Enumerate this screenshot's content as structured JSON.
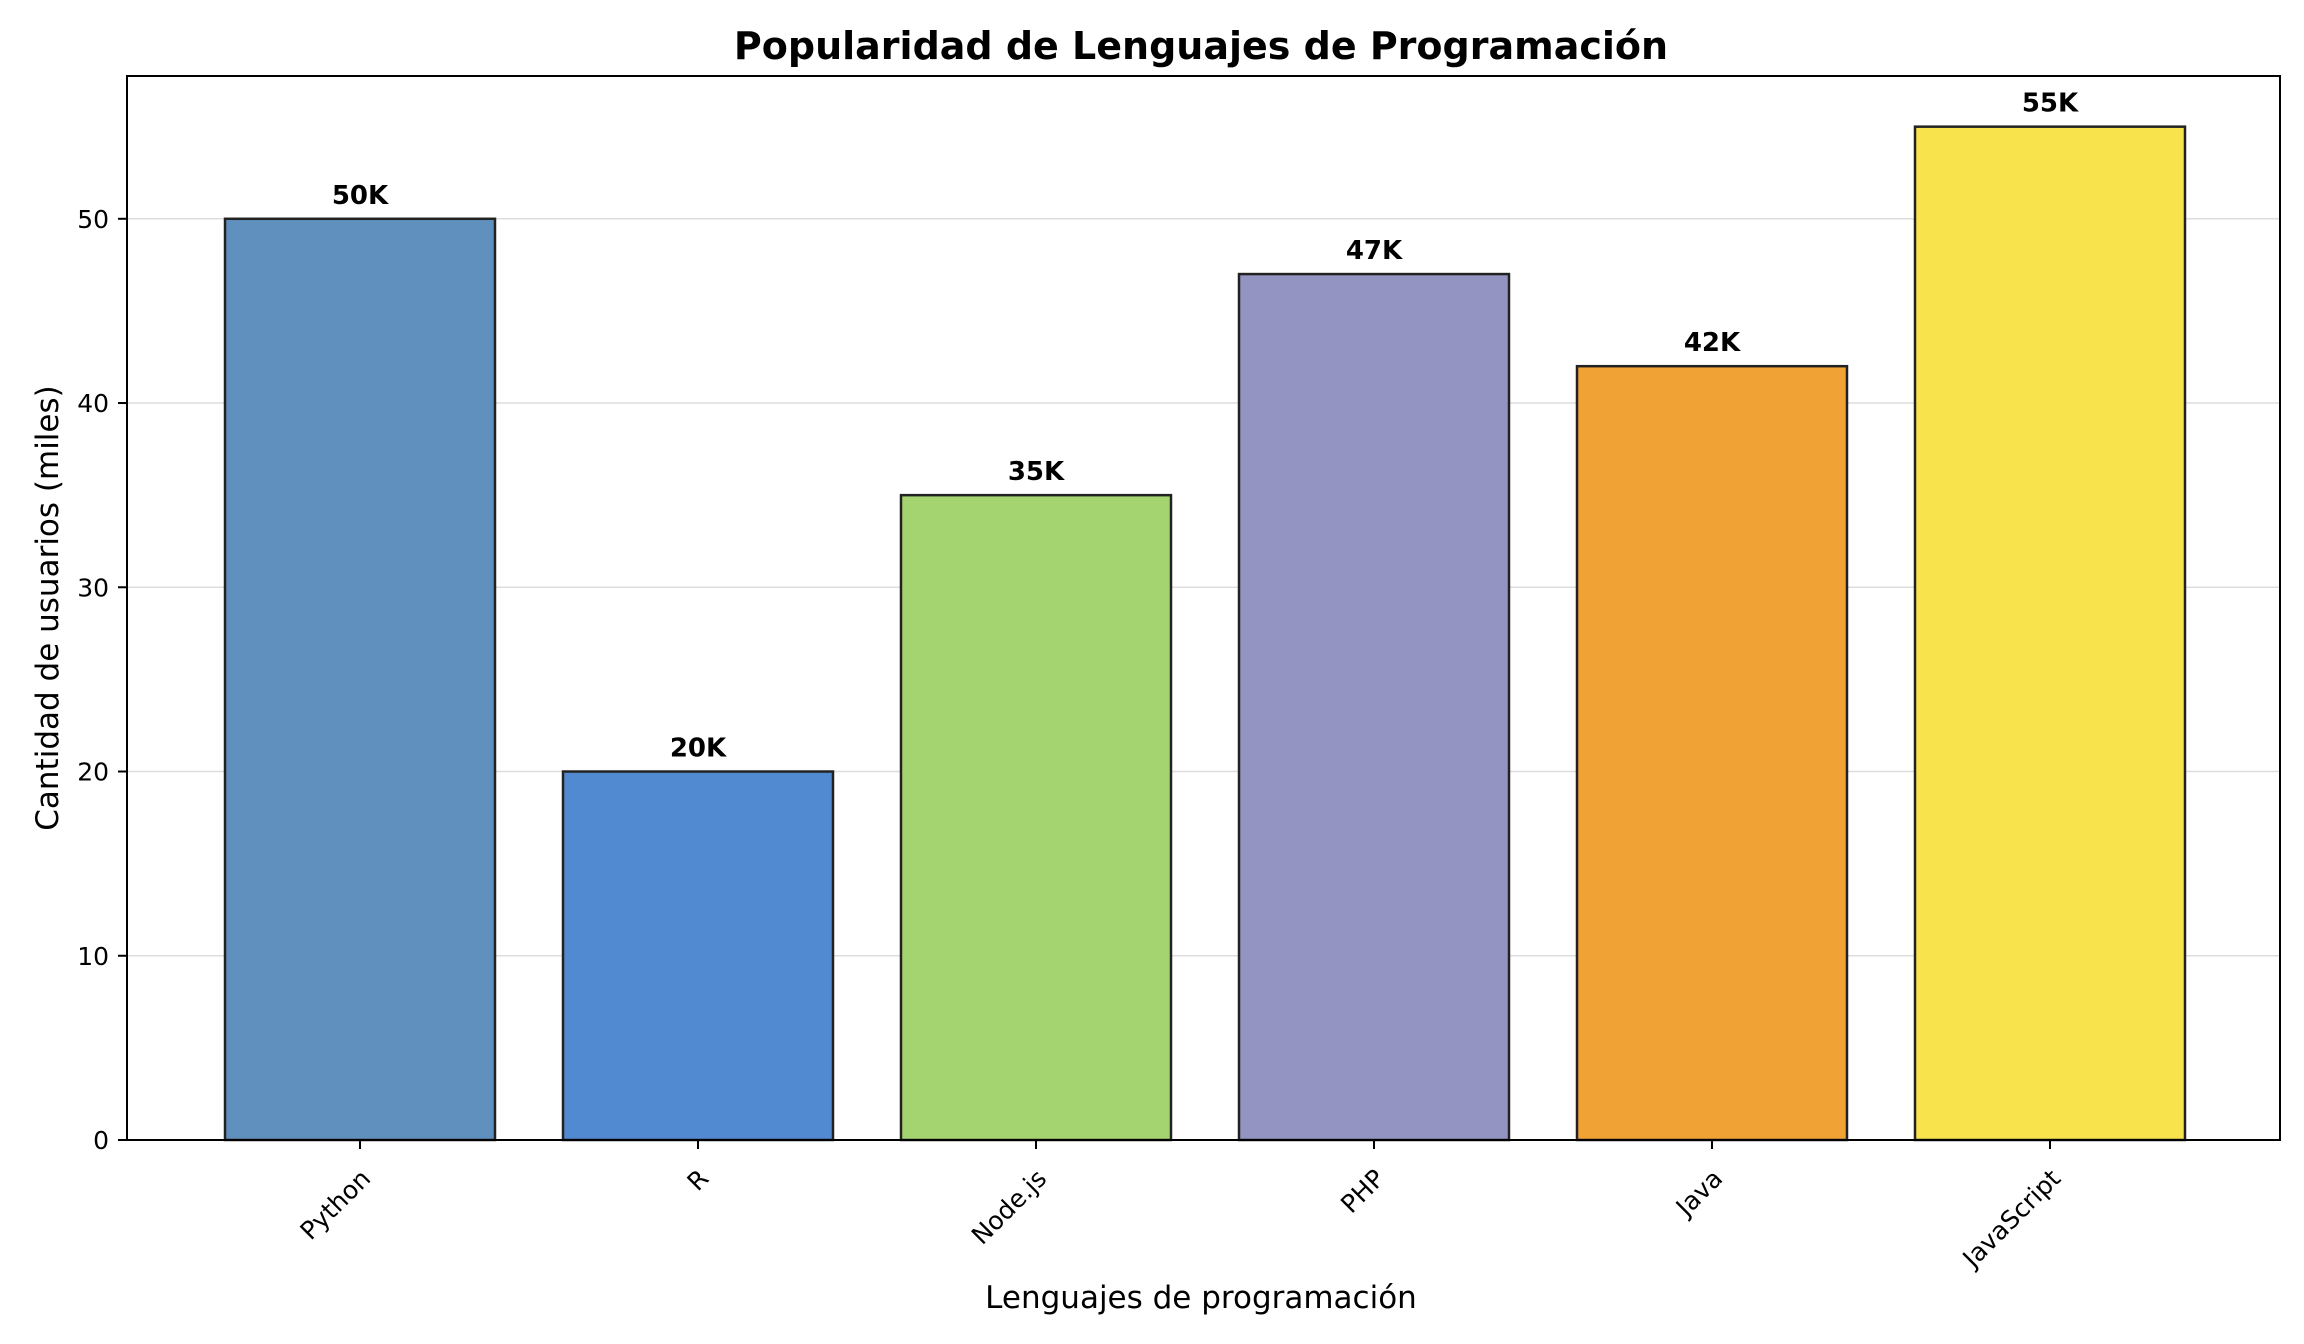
{
  "chart_data": {
    "type": "bar",
    "title": "Popularidad de Lenguajes de Programación",
    "xlabel": "Lenguajes de programación",
    "ylabel": "Cantidad de usuarios (miles)",
    "categories": [
      "Python",
      "R",
      "Node.js",
      "PHP",
      "Java",
      "JavaScript"
    ],
    "values": [
      50,
      20,
      35,
      47,
      42,
      55
    ],
    "data_labels": [
      "50K",
      "20K",
      "35K",
      "47K",
      "42K",
      "55K"
    ],
    "colors": [
      "#6090bd",
      "#518ad1",
      "#a4d46f",
      "#9494c3",
      "#f0a235",
      "#f8e34d"
    ],
    "ylim": [
      0,
      57.75
    ],
    "yticks": [
      0,
      10,
      20,
      30,
      40,
      50
    ],
    "grid": "y",
    "legend": "none"
  }
}
